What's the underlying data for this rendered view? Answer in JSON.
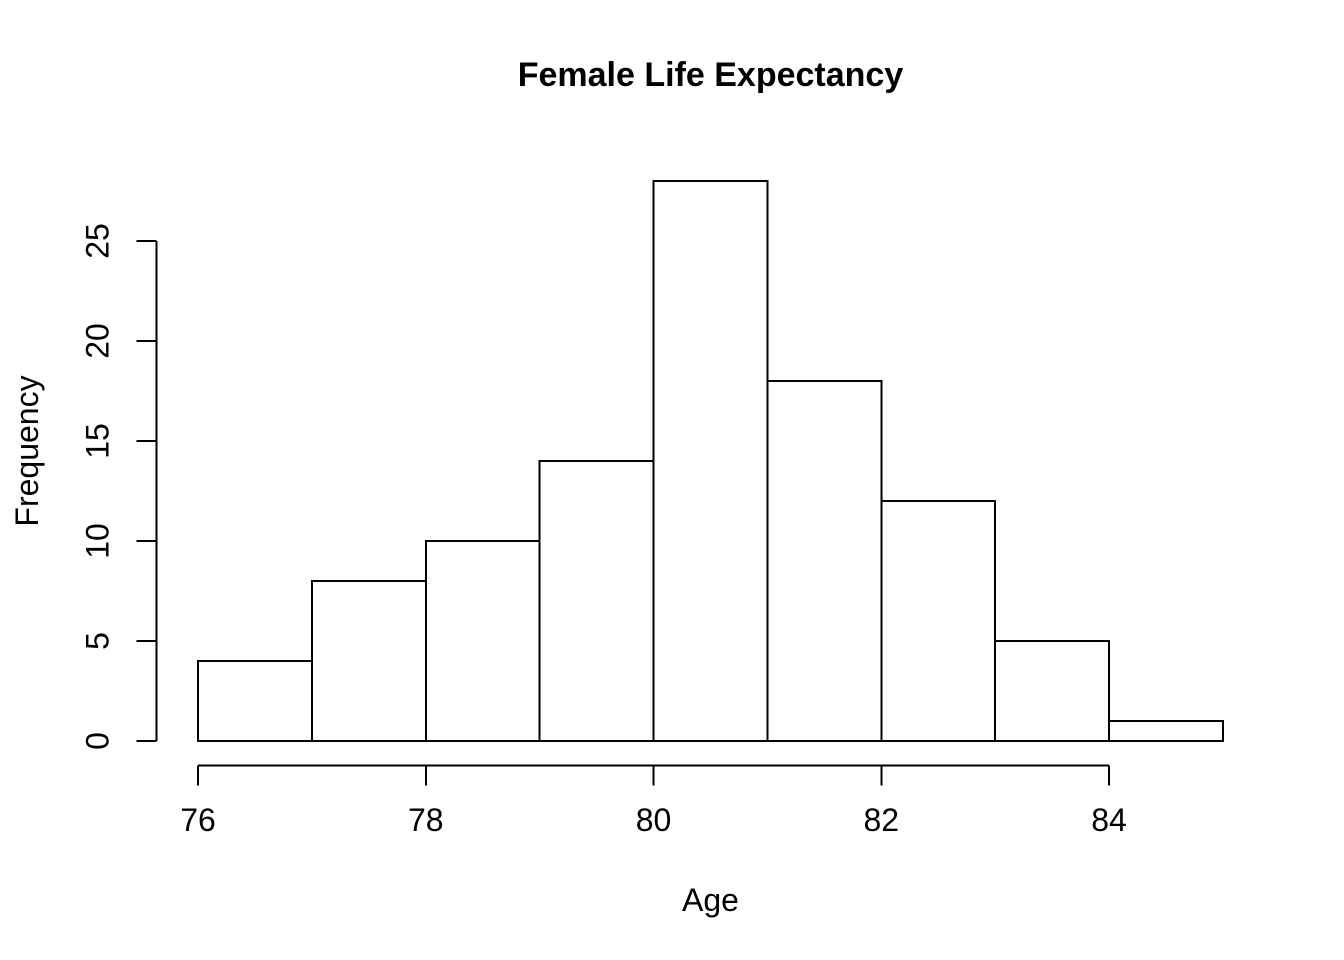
{
  "chart_data": {
    "type": "histogram",
    "title": "Female Life Expectancy",
    "xlabel": "Age",
    "ylabel": "Frequency",
    "bin_edges": [
      76,
      77,
      78,
      79,
      80,
      81,
      82,
      83,
      84,
      85
    ],
    "counts": [
      4,
      8,
      10,
      14,
      28,
      18,
      12,
      5,
      1
    ],
    "x_ticks": [
      76,
      78,
      80,
      82,
      84
    ],
    "y_ticks": [
      0,
      5,
      10,
      15,
      20,
      25
    ],
    "xlim": [
      76,
      85
    ],
    "ylim": [
      0,
      28
    ],
    "grid": false,
    "legend_position": "none",
    "bar_fill": "#ffffff",
    "line_color": "#000000",
    "background": "#ffffff"
  }
}
